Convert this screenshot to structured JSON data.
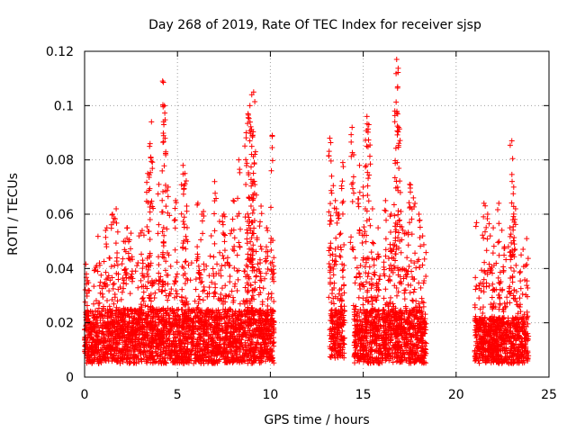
{
  "chart_data": {
    "type": "scatter",
    "title": "Day 268 of 2019, Rate Of TEC Index for receiver sjsp",
    "xlabel": "GPS time / hours",
    "ylabel": "ROTI / TECUs",
    "xlim": [
      0,
      25
    ],
    "ylim": [
      0,
      0.12
    ],
    "xticks": [
      0,
      5,
      10,
      15,
      20,
      25
    ],
    "xtick_labels": [
      "0",
      "5",
      "10",
      "15",
      "20",
      "25"
    ],
    "yticks": [
      0,
      0.02,
      0.04,
      0.06,
      0.08,
      0.1,
      0.12
    ],
    "ytick_labels": [
      "0",
      "0.02",
      "0.04",
      "0.06",
      "0.08",
      "0.1",
      "0.12"
    ],
    "grid": true,
    "marker": "+",
    "color": "#ff0000",
    "series": [
      {
        "name": "ROTI",
        "segments": [
          {
            "x_start": 0.0,
            "x_end": 10.2,
            "typical_min": 0.005,
            "typical_max": 0.025
          },
          {
            "x_start": 13.2,
            "x_end": 14.0,
            "typical_min": 0.007,
            "typical_max": 0.025
          },
          {
            "x_start": 14.5,
            "x_end": 18.4,
            "typical_min": 0.005,
            "typical_max": 0.025
          },
          {
            "x_start": 21.0,
            "x_end": 23.9,
            "typical_min": 0.005,
            "typical_max": 0.022
          }
        ],
        "peaks": [
          {
            "x": 0.1,
            "y": 0.038
          },
          {
            "x": 0.8,
            "y": 0.042
          },
          {
            "x": 1.2,
            "y": 0.055
          },
          {
            "x": 1.5,
            "y": 0.06
          },
          {
            "x": 1.7,
            "y": 0.062
          },
          {
            "x": 2.1,
            "y": 0.05
          },
          {
            "x": 2.3,
            "y": 0.055
          },
          {
            "x": 2.5,
            "y": 0.053
          },
          {
            "x": 3.1,
            "y": 0.054
          },
          {
            "x": 3.6,
            "y": 0.094
          },
          {
            "x": 3.5,
            "y": 0.085
          },
          {
            "x": 3.4,
            "y": 0.075
          },
          {
            "x": 4.0,
            "y": 0.071
          },
          {
            "x": 4.2,
            "y": 0.109
          },
          {
            "x": 4.3,
            "y": 0.1
          },
          {
            "x": 4.5,
            "y": 0.07
          },
          {
            "x": 4.9,
            "y": 0.065
          },
          {
            "x": 5.3,
            "y": 0.078
          },
          {
            "x": 5.4,
            "y": 0.075
          },
          {
            "x": 5.5,
            "y": 0.063
          },
          {
            "x": 6.1,
            "y": 0.064
          },
          {
            "x": 6.4,
            "y": 0.061
          },
          {
            "x": 7.0,
            "y": 0.072
          },
          {
            "x": 7.5,
            "y": 0.06
          },
          {
            "x": 8.0,
            "y": 0.065
          },
          {
            "x": 8.3,
            "y": 0.08
          },
          {
            "x": 8.7,
            "y": 0.09
          },
          {
            "x": 8.8,
            "y": 0.097
          },
          {
            "x": 8.9,
            "y": 0.1
          },
          {
            "x": 9.0,
            "y": 0.104
          },
          {
            "x": 9.1,
            "y": 0.105
          },
          {
            "x": 9.0,
            "y": 0.085
          },
          {
            "x": 9.2,
            "y": 0.083
          },
          {
            "x": 9.5,
            "y": 0.063
          },
          {
            "x": 9.8,
            "y": 0.055
          },
          {
            "x": 10.1,
            "y": 0.089
          },
          {
            "x": 13.2,
            "y": 0.088
          },
          {
            "x": 13.3,
            "y": 0.074
          },
          {
            "x": 13.5,
            "y": 0.065
          },
          {
            "x": 13.7,
            "y": 0.06
          },
          {
            "x": 13.9,
            "y": 0.079
          },
          {
            "x": 14.4,
            "y": 0.092
          },
          {
            "x": 14.8,
            "y": 0.078
          },
          {
            "x": 15.0,
            "y": 0.07
          },
          {
            "x": 15.2,
            "y": 0.096
          },
          {
            "x": 15.3,
            "y": 0.093
          },
          {
            "x": 15.5,
            "y": 0.062
          },
          {
            "x": 15.8,
            "y": 0.055
          },
          {
            "x": 16.2,
            "y": 0.065
          },
          {
            "x": 16.5,
            "y": 0.06
          },
          {
            "x": 16.7,
            "y": 0.098
          },
          {
            "x": 16.8,
            "y": 0.117
          },
          {
            "x": 16.9,
            "y": 0.092
          },
          {
            "x": 17.0,
            "y": 0.068
          },
          {
            "x": 17.3,
            "y": 0.053
          },
          {
            "x": 17.5,
            "y": 0.071
          },
          {
            "x": 17.7,
            "y": 0.066
          },
          {
            "x": 18.0,
            "y": 0.06
          },
          {
            "x": 18.2,
            "y": 0.052
          },
          {
            "x": 21.5,
            "y": 0.064
          },
          {
            "x": 21.7,
            "y": 0.06
          },
          {
            "x": 22.0,
            "y": 0.055
          },
          {
            "x": 22.3,
            "y": 0.064
          },
          {
            "x": 22.6,
            "y": 0.048
          },
          {
            "x": 22.9,
            "y": 0.055
          },
          {
            "x": 23.0,
            "y": 0.087
          },
          {
            "x": 23.1,
            "y": 0.07
          },
          {
            "x": 23.2,
            "y": 0.062
          },
          {
            "x": 23.5,
            "y": 0.045
          },
          {
            "x": 23.8,
            "y": 0.051
          }
        ]
      }
    ]
  }
}
